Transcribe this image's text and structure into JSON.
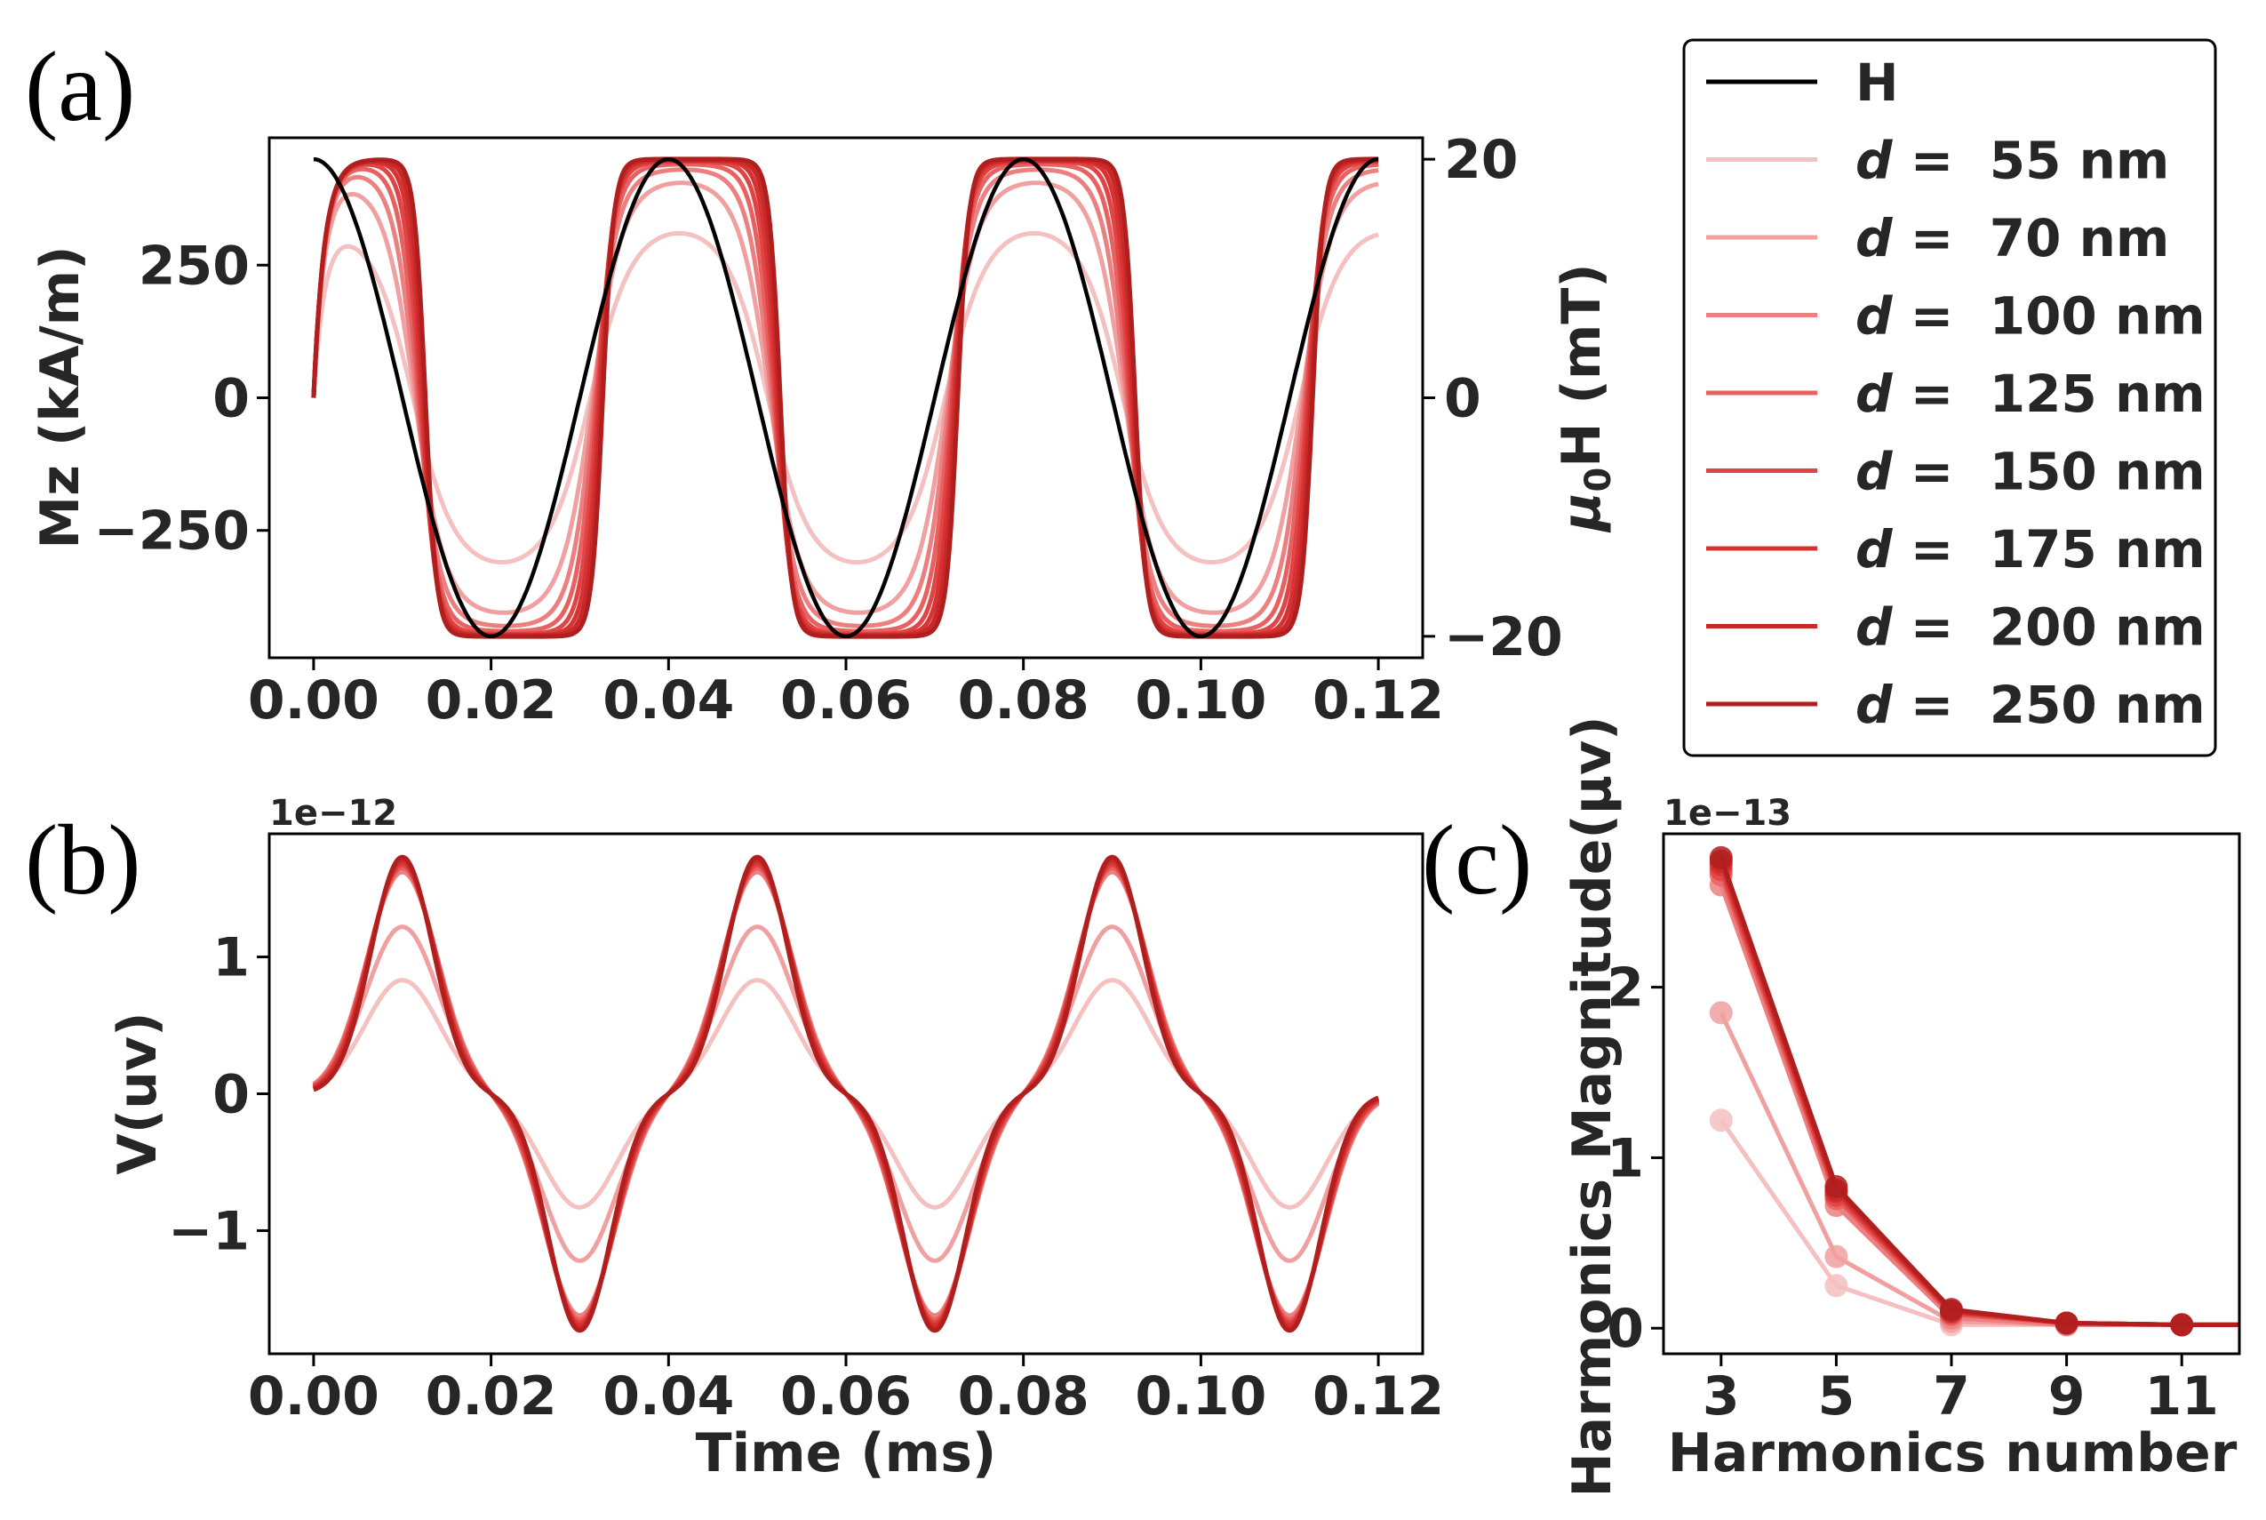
{
  "chart_data": [
    {
      "id": "a",
      "panel_label": "(a)",
      "type": "line",
      "xlabel": "",
      "ylabel": "Mz (kA/m)",
      "ylabel_right": "μ0H (mT)",
      "xlim": [
        -0.005,
        0.125
      ],
      "ylim": [
        -490,
        490
      ],
      "ylim_right": [
        -21.8,
        21.8
      ],
      "xticks": [
        0.0,
        0.02,
        0.04,
        0.06,
        0.08,
        0.1,
        0.12
      ],
      "xticklabels": [
        "0.00",
        "0.02",
        "0.04",
        "0.06",
        "0.08",
        "0.10",
        "0.12"
      ],
      "yticks": [
        -250,
        0,
        250
      ],
      "yticklabels": [
        "−250",
        "0",
        "250"
      ],
      "yticks_right": [
        -20,
        0,
        20
      ],
      "yticklabels_right": [
        "−20",
        "0",
        "20"
      ],
      "field": {
        "name": "H",
        "amplitude_mT": 20,
        "period_ms": 0.04,
        "color": "#000000"
      },
      "series": [
        {
          "name": "d = 55 nm",
          "amplitude_kAm": 310,
          "color": "#f5c0c0"
        },
        {
          "name": "d = 70 nm",
          "amplitude_kAm": 405,
          "color": "#f0a0a0"
        },
        {
          "name": "d = 100 nm",
          "amplitude_kAm": 430,
          "color": "#ec8080"
        },
        {
          "name": "d = 125 nm",
          "amplitude_kAm": 440,
          "color": "#e96060"
        },
        {
          "name": "d = 150 nm",
          "amplitude_kAm": 445,
          "color": "#e04444"
        },
        {
          "name": "d = 175 nm",
          "amplitude_kAm": 447,
          "color": "#d83333"
        },
        {
          "name": "d = 200 nm",
          "amplitude_kAm": 448,
          "color": "#c82828"
        },
        {
          "name": "d = 250 nm",
          "amplitude_kAm": 450,
          "color": "#b01e1e"
        }
      ]
    },
    {
      "id": "b",
      "panel_label": "(b)",
      "type": "line",
      "xlabel": "Time (ms)",
      "ylabel": "V(uv)",
      "offset_text": "1e−12",
      "xlim": [
        -0.005,
        0.125
      ],
      "ylim": [
        -1.9,
        1.9
      ],
      "xticks": [
        0.0,
        0.02,
        0.04,
        0.06,
        0.08,
        0.1,
        0.12
      ],
      "xticklabels": [
        "0.00",
        "0.02",
        "0.04",
        "0.06",
        "0.08",
        "0.10",
        "0.12"
      ],
      "yticks": [
        -1,
        0,
        1
      ],
      "yticklabels": [
        "−1",
        "0",
        "1"
      ],
      "series": [
        {
          "name": "d = 55 nm",
          "peak": 0.83,
          "color": "#f5c0c0"
        },
        {
          "name": "d = 70 nm",
          "peak": 1.22,
          "color": "#f0a0a0"
        },
        {
          "name": "d = 100 nm",
          "peak": 1.62,
          "color": "#ec8080"
        },
        {
          "name": "d = 125 nm",
          "peak": 1.65,
          "color": "#e96060"
        },
        {
          "name": "d = 150 nm",
          "peak": 1.67,
          "color": "#e04444"
        },
        {
          "name": "d = 175 nm",
          "peak": 1.69,
          "color": "#d83333"
        },
        {
          "name": "d = 200 nm",
          "peak": 1.71,
          "color": "#c82828"
        },
        {
          "name": "d = 250 nm",
          "peak": 1.73,
          "color": "#b01e1e"
        }
      ]
    },
    {
      "id": "c",
      "panel_label": "(c)",
      "type": "line",
      "xlabel": "Harmonics number",
      "ylabel": "Harmonics Magnitude(μv)",
      "offset_text": "1e−13",
      "xlim": [
        2,
        12
      ],
      "ylim": [
        -0.15,
        2.9
      ],
      "xticks": [
        3,
        5,
        7,
        9,
        11
      ],
      "xticklabels": [
        "3",
        "5",
        "7",
        "9",
        "11"
      ],
      "yticks": [
        0,
        1,
        2
      ],
      "yticklabels": [
        "0",
        "1",
        "2"
      ],
      "x": [
        3,
        5,
        7,
        9,
        11,
        12
      ],
      "series": [
        {
          "name": "d = 55 nm",
          "values": [
            1.22,
            0.25,
            0.02,
            0.02,
            0.02,
            0.02
          ],
          "color": "#f5c0c0"
        },
        {
          "name": "d = 70 nm",
          "values": [
            1.85,
            0.42,
            0.04,
            0.02,
            0.02,
            0.02
          ],
          "color": "#f0a0a0"
        },
        {
          "name": "d = 100 nm",
          "values": [
            2.6,
            0.72,
            0.06,
            0.02,
            0.02,
            0.02
          ],
          "color": "#ec8080"
        },
        {
          "name": "d = 125 nm",
          "values": [
            2.66,
            0.76,
            0.08,
            0.03,
            0.02,
            0.02
          ],
          "color": "#e96060"
        },
        {
          "name": "d = 150 nm",
          "values": [
            2.69,
            0.78,
            0.09,
            0.03,
            0.02,
            0.02
          ],
          "color": "#e04444"
        },
        {
          "name": "d = 175 nm",
          "values": [
            2.72,
            0.8,
            0.1,
            0.03,
            0.02,
            0.02
          ],
          "color": "#d83333"
        },
        {
          "name": "d = 200 nm",
          "values": [
            2.74,
            0.81,
            0.1,
            0.03,
            0.02,
            0.02
          ],
          "color": "#c82828"
        },
        {
          "name": "d = 250 nm",
          "values": [
            2.76,
            0.83,
            0.11,
            0.03,
            0.02,
            0.02
          ],
          "color": "#b01e1e"
        }
      ]
    }
  ],
  "legend": {
    "placement": "top-right",
    "entries": [
      {
        "prefix": "",
        "var": "",
        "text": "H",
        "color": "#000000"
      },
      {
        "prefix": "",
        "var": "d",
        "text": " =  55 nm",
        "color": "#f5c0c0"
      },
      {
        "prefix": "",
        "var": "d",
        "text": " =  70 nm",
        "color": "#f0a0a0"
      },
      {
        "prefix": "",
        "var": "d",
        "text": " =  100 nm",
        "color": "#ec8080"
      },
      {
        "prefix": "",
        "var": "d",
        "text": " =  125 nm",
        "color": "#e96060"
      },
      {
        "prefix": "",
        "var": "d",
        "text": " =  150 nm",
        "color": "#e04444"
      },
      {
        "prefix": "",
        "var": "d",
        "text": " =  175 nm",
        "color": "#d83333"
      },
      {
        "prefix": "",
        "var": "d",
        "text": " =  200 nm",
        "color": "#c82828"
      },
      {
        "prefix": "",
        "var": "d",
        "text": " =  250 nm",
        "color": "#b01e1e"
      }
    ]
  }
}
